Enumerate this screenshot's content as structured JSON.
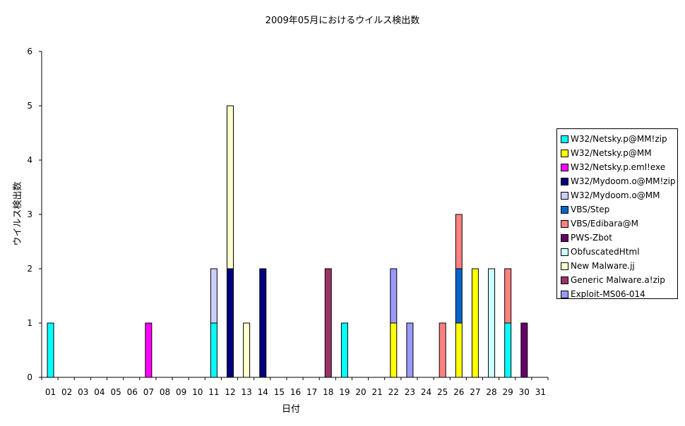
{
  "chart_data": {
    "type": "bar",
    "stacked": true,
    "title": "2009年05月におけるウイルス検出数",
    "xlabel": "日付",
    "ylabel": "ウイルス検出数",
    "ylim": [
      0,
      6
    ],
    "yticks": [
      0,
      1,
      2,
      3,
      4,
      5,
      6
    ],
    "grid": false,
    "legend_position": "right",
    "categories": [
      "01",
      "02",
      "03",
      "04",
      "05",
      "06",
      "07",
      "08",
      "09",
      "10",
      "11",
      "12",
      "13",
      "14",
      "15",
      "16",
      "17",
      "18",
      "19",
      "20",
      "21",
      "22",
      "23",
      "24",
      "25",
      "26",
      "27",
      "28",
      "29",
      "30",
      "31"
    ],
    "series": [
      {
        "name": "W32/Netsky.p@MM!zip",
        "color": "#00ffff",
        "values": [
          1,
          0,
          0,
          0,
          0,
          0,
          0,
          0,
          0,
          0,
          1,
          0,
          0,
          0,
          0,
          0,
          0,
          0,
          1,
          0,
          0,
          0,
          0,
          0,
          0,
          0,
          0,
          0,
          1,
          0,
          0
        ]
      },
      {
        "name": "W32/Netsky.p@MM",
        "color": "#ffff00",
        "values": [
          0,
          0,
          0,
          0,
          0,
          0,
          0,
          0,
          0,
          0,
          0,
          0,
          0,
          0,
          0,
          0,
          0,
          0,
          0,
          0,
          0,
          1,
          0,
          0,
          0,
          1,
          2,
          0,
          0,
          0,
          0
        ]
      },
      {
        "name": "W32/Netsky.p.eml!exe",
        "color": "#ff00ff",
        "values": [
          0,
          0,
          0,
          0,
          0,
          0,
          1,
          0,
          0,
          0,
          0,
          0,
          0,
          0,
          0,
          0,
          0,
          0,
          0,
          0,
          0,
          0,
          0,
          0,
          0,
          0,
          0,
          0,
          0,
          0,
          0
        ]
      },
      {
        "name": "W32/Mydoom.o@MM!zip",
        "color": "#000080",
        "values": [
          0,
          0,
          0,
          0,
          0,
          0,
          0,
          0,
          0,
          0,
          0,
          2,
          0,
          2,
          0,
          0,
          0,
          0,
          0,
          0,
          0,
          0,
          0,
          0,
          0,
          0,
          0,
          0,
          0,
          0,
          0
        ]
      },
      {
        "name": "W32/Mydoom.o@MM",
        "color": "#ccccff",
        "values": [
          0,
          0,
          0,
          0,
          0,
          0,
          0,
          0,
          0,
          0,
          1,
          0,
          0,
          0,
          0,
          0,
          0,
          0,
          0,
          0,
          0,
          0,
          0,
          0,
          0,
          0,
          0,
          0,
          0,
          0,
          0
        ]
      },
      {
        "name": "VBS/Step",
        "color": "#0066cc",
        "values": [
          0,
          0,
          0,
          0,
          0,
          0,
          0,
          0,
          0,
          0,
          0,
          0,
          0,
          0,
          0,
          0,
          0,
          0,
          0,
          0,
          0,
          0,
          0,
          0,
          0,
          1,
          0,
          0,
          0,
          0,
          0
        ]
      },
      {
        "name": "VBS/Edibara@M",
        "color": "#ff8080",
        "values": [
          0,
          0,
          0,
          0,
          0,
          0,
          0,
          0,
          0,
          0,
          0,
          0,
          0,
          0,
          0,
          0,
          0,
          0,
          0,
          0,
          0,
          0,
          0,
          0,
          1,
          1,
          0,
          0,
          1,
          0,
          0
        ]
      },
      {
        "name": "PWS-Zbot",
        "color": "#660066",
        "values": [
          0,
          0,
          0,
          0,
          0,
          0,
          0,
          0,
          0,
          0,
          0,
          0,
          0,
          0,
          0,
          0,
          0,
          0,
          0,
          0,
          0,
          0,
          0,
          0,
          0,
          0,
          0,
          0,
          0,
          1,
          0
        ]
      },
      {
        "name": "ObfuscatedHtml",
        "color": "#ccffff",
        "values": [
          0,
          0,
          0,
          0,
          0,
          0,
          0,
          0,
          0,
          0,
          0,
          0,
          0,
          0,
          0,
          0,
          0,
          0,
          0,
          0,
          0,
          0,
          0,
          0,
          0,
          0,
          0,
          2,
          0,
          0,
          0
        ]
      },
      {
        "name": "New Malware.jj",
        "color": "#ffffcc",
        "values": [
          0,
          0,
          0,
          0,
          0,
          0,
          0,
          0,
          0,
          0,
          0,
          3,
          1,
          0,
          0,
          0,
          0,
          0,
          0,
          0,
          0,
          0,
          0,
          0,
          0,
          0,
          0,
          0,
          0,
          0,
          0
        ]
      },
      {
        "name": "Generic Malware.a!zip",
        "color": "#993366",
        "values": [
          0,
          0,
          0,
          0,
          0,
          0,
          0,
          0,
          0,
          0,
          0,
          0,
          0,
          0,
          0,
          0,
          0,
          2,
          0,
          0,
          0,
          0,
          0,
          0,
          0,
          0,
          0,
          0,
          0,
          0,
          0
        ]
      },
      {
        "name": "Exploit-MS06-014",
        "color": "#9999ff",
        "values": [
          0,
          0,
          0,
          0,
          0,
          0,
          0,
          0,
          0,
          0,
          0,
          0,
          0,
          0,
          0,
          0,
          0,
          0,
          0,
          0,
          0,
          1,
          1,
          0,
          0,
          0,
          0,
          0,
          0,
          0,
          0
        ]
      }
    ]
  }
}
